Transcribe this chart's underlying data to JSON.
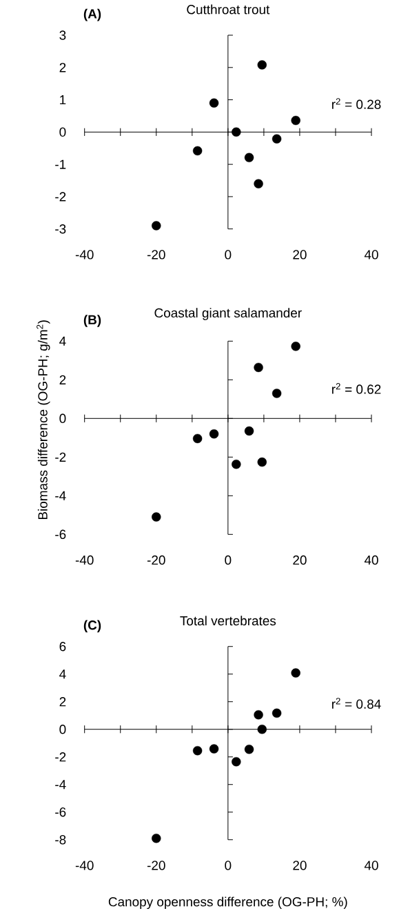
{
  "chart_data": [
    {
      "type": "scatter",
      "title": "Cutthroat trout",
      "annotations": [
        "(A)",
        "r$^{2}$ = 0.28"
      ],
      "marker": "circle",
      "color": "#000000",
      "x": [
        -20.0,
        -8.5,
        -3.9,
        2.3,
        5.9,
        8.5,
        9.5,
        13.6,
        18.9
      ],
      "values": [
        -2.9,
        -0.58,
        0.9,
        0.0,
        -0.79,
        -1.6,
        2.08,
        -0.21,
        0.36
      ],
      "xlim": [
        -40,
        40
      ],
      "ylim": [
        -3,
        3
      ],
      "xticks": [
        -40,
        {
          "value": -30,
          "label": null
        },
        -20,
        {
          "value": -10,
          "label": null
        },
        0,
        {
          "value": 10,
          "label": null
        },
        20,
        {
          "value": 30,
          "label": null
        },
        40
      ],
      "yticks": [
        -3,
        -2,
        -1,
        0,
        1,
        2,
        3
      ]
    },
    {
      "type": "scatter",
      "title": "Coastal giant salamander",
      "ylabel": "Biomass difference (OG-PH; g/m$^{2}$)",
      "annotations": [
        "(B)",
        "r$^{2}$ = 0.62"
      ],
      "marker": "circle",
      "color": "#000000",
      "x": [
        -20.0,
        -8.5,
        -3.9,
        2.3,
        5.9,
        8.5,
        9.5,
        13.6,
        18.9
      ],
      "values": [
        -5.1,
        -1.04,
        -0.8,
        -2.37,
        -0.65,
        2.64,
        -2.26,
        1.3,
        3.73
      ],
      "xlim": [
        -40,
        40
      ],
      "ylim": [
        -6,
        4
      ],
      "xticks": [
        -40,
        {
          "value": -30,
          "label": null
        },
        -20,
        {
          "value": -10,
          "label": null
        },
        0,
        {
          "value": 10,
          "label": null
        },
        20,
        {
          "value": 30,
          "label": null
        },
        40
      ],
      "yticks": [
        -6,
        -4,
        -2,
        0,
        2,
        4
      ]
    },
    {
      "type": "scatter",
      "title": "Total vertebrates",
      "xlabel": "Canopy openness difference (OG-PH; %)",
      "annotations": [
        "(C)",
        "r$^{2}$ = 0.84"
      ],
      "marker": "circle",
      "color": "#000000",
      "x": [
        -20.0,
        -8.5,
        -3.9,
        2.3,
        5.9,
        8.5,
        9.5,
        13.6,
        18.9
      ],
      "values": [
        -7.9,
        -1.55,
        -1.42,
        -2.35,
        -1.45,
        1.05,
        0.0,
        1.17,
        4.08
      ],
      "xlim": [
        -40,
        40
      ],
      "ylim": [
        -8,
        6
      ],
      "xticks": [
        -40,
        {
          "value": -30,
          "label": null
        },
        -20,
        {
          "value": -10,
          "label": null
        },
        0,
        {
          "value": 10,
          "label": null
        },
        20,
        {
          "value": 30,
          "label": null
        },
        40
      ],
      "yticks": [
        -8,
        -6,
        -4,
        -2,
        0,
        2,
        4,
        6
      ]
    }
  ]
}
